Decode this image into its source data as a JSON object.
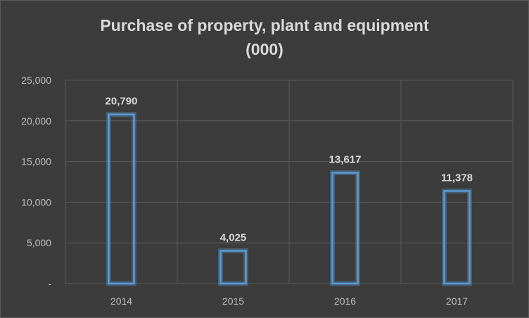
{
  "chart_data": {
    "type": "bar",
    "title_lines": [
      "Purchase of property, plant and equipment",
      "(000)"
    ],
    "categories": [
      "2014",
      "2015",
      "2016",
      "2017"
    ],
    "values": [
      20790,
      4025,
      13617,
      11378
    ],
    "value_labels": [
      "20,790",
      "4,025",
      "13,617",
      "11,378"
    ],
    "ylim": [
      0,
      25000
    ],
    "yticks": [
      0,
      5000,
      10000,
      15000,
      20000,
      25000
    ],
    "ytick_labels": [
      "-",
      "5,000",
      "10,000",
      "15,000",
      "20,000",
      "25,000"
    ],
    "xlabel": "",
    "ylabel": "",
    "grid": true,
    "legend": false
  },
  "colors": {
    "background": "#3c3c3c",
    "bar_outline": "#5b9bd5",
    "text": "#d9d9d9",
    "grid": "#5a5a5a"
  }
}
